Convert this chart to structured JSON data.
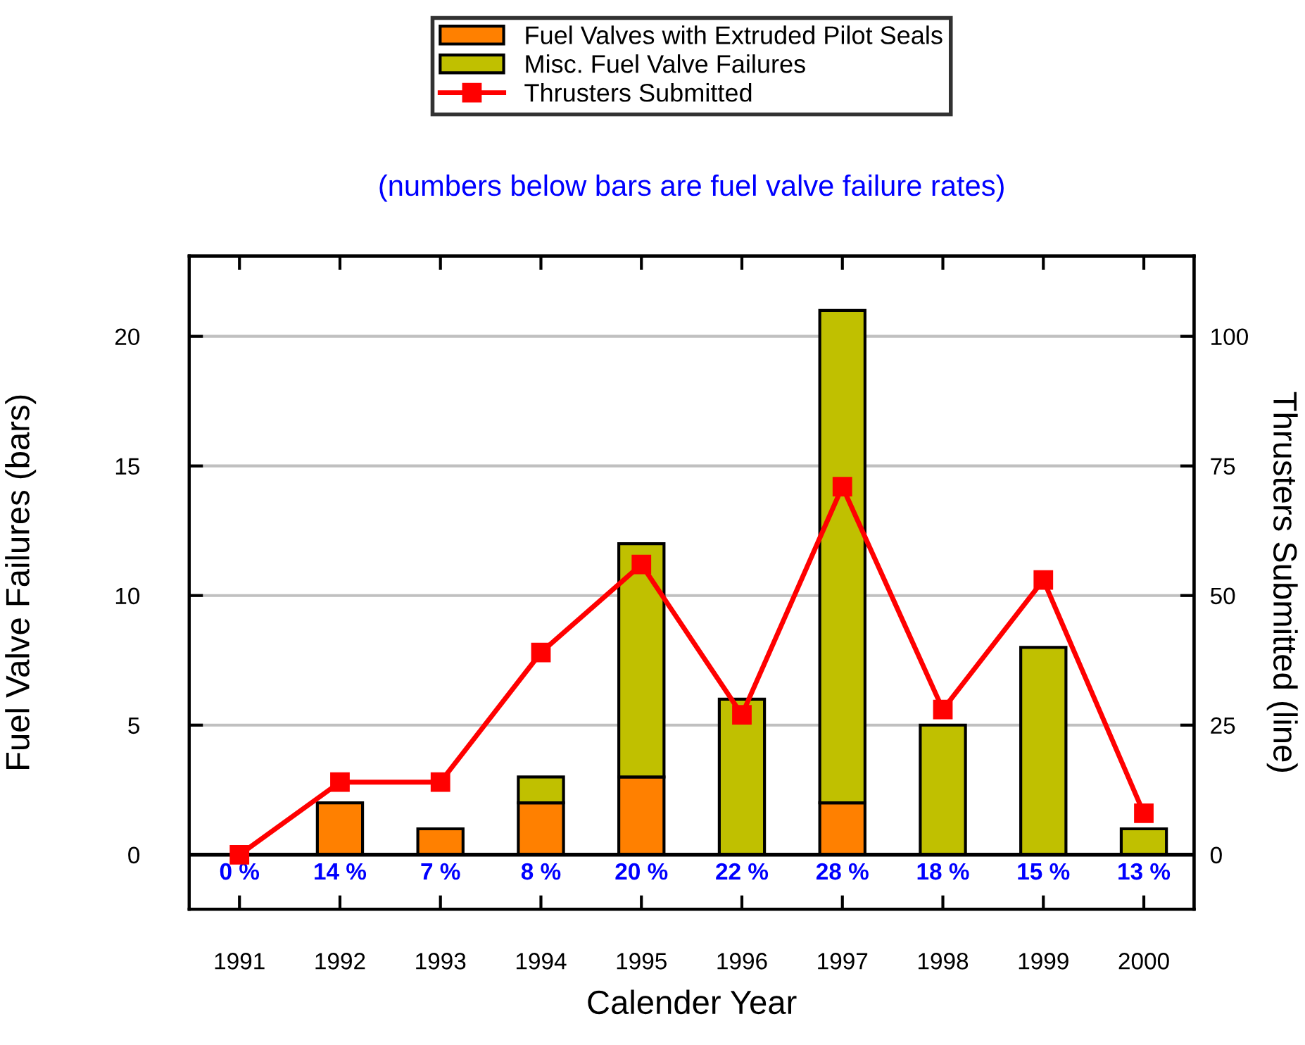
{
  "chart_data": {
    "type": "bar",
    "stacked": true,
    "subtitle": "(numbers below bars are fuel valve failure rates)",
    "xlabel": "Calender Year",
    "ylabel": "Fuel Valve Failures (bars)",
    "y2label": "Thrusters Submitted (line)",
    "categories": [
      "1991",
      "1992",
      "1993",
      "1994",
      "1995",
      "1996",
      "1997",
      "1998",
      "1999",
      "2000"
    ],
    "series": [
      {
        "name": "Fuel Valves with Extruded Pilot Seals",
        "color": "#ff8000",
        "values": [
          0,
          2,
          1,
          2,
          3,
          0,
          2,
          0,
          0,
          0
        ]
      },
      {
        "name": "Misc. Fuel Valve Failures",
        "color": "#c0c000",
        "values": [
          0,
          0,
          0,
          1,
          9,
          6,
          19,
          5,
          8,
          1
        ]
      },
      {
        "name": "Thrusters Submitted",
        "type": "line",
        "axis": "y2",
        "color": "#ff0000",
        "marker": "square",
        "values": [
          0,
          14,
          14,
          39,
          56,
          27,
          71,
          28,
          53,
          8
        ]
      }
    ],
    "ylim": [
      -2.1,
      23.1
    ],
    "yticks": [
      0,
      5,
      10,
      15,
      20
    ],
    "y2lim": [
      -10.5,
      115.5
    ],
    "y2ticks": [
      0,
      25,
      50,
      75,
      100
    ],
    "grid": "y",
    "legend": "top",
    "ref_lines": [
      {
        "axis": "y",
        "value": 0,
        "color": "#000000"
      }
    ],
    "annotations": [
      {
        "text": "0 %",
        "x": "1991",
        "y": 0
      },
      {
        "text": "14 %",
        "x": "1992",
        "y": 0
      },
      {
        "text": "7 %",
        "x": "1993",
        "y": 0
      },
      {
        "text": "8 %",
        "x": "1994",
        "y": 0
      },
      {
        "text": "20 %",
        "x": "1995",
        "y": 0
      },
      {
        "text": "22 %",
        "x": "1996",
        "y": 0
      },
      {
        "text": "28 %",
        "x": "1997",
        "y": 0
      },
      {
        "text": "18 %",
        "x": "1998",
        "y": 0
      },
      {
        "text": "15 %",
        "x": "1999",
        "y": 0
      },
      {
        "text": "13 %",
        "x": "2000",
        "y": 0
      }
    ]
  }
}
